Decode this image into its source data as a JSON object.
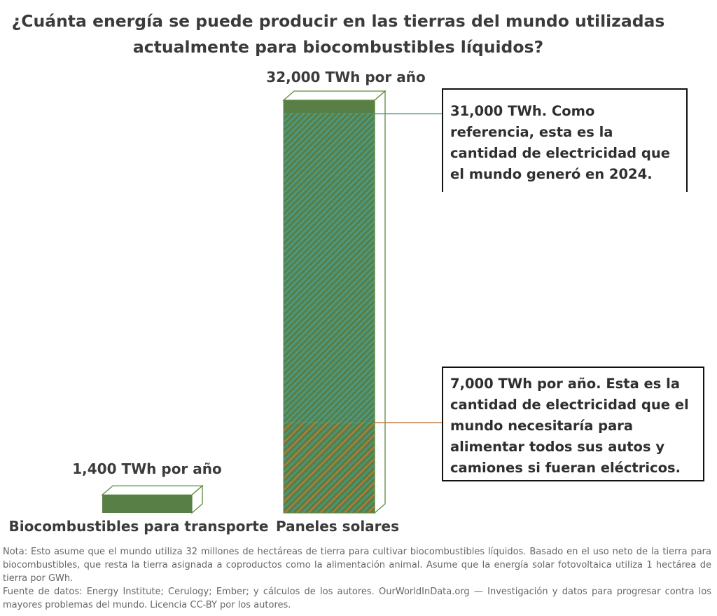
{
  "title": {
    "line1": "¿Cuánta energía se puede producir en las tierras del mundo utilizadas",
    "line2": "actualmente para biocombustibles líquidos?"
  },
  "colors": {
    "green": "#587f45",
    "green_light": "#6e9a58",
    "hatch": "#4a9a86",
    "orange": "#c17a3a",
    "outline": "#5b8a3c"
  },
  "chart_data": {
    "type": "bar",
    "unit": "TWh por año",
    "categories": [
      "Biocombustibles para transporte",
      "Paneles solares"
    ],
    "values": [
      1400,
      32000
    ],
    "value_labels": [
      "1,400 TWh por año",
      "32,000 TWh por año"
    ],
    "ylim": [
      0,
      32000
    ],
    "grid": false,
    "segments": {
      "global_electricity_2024": 31000,
      "ev_transport_electricity": 7000
    },
    "annotations": [
      {
        "value": 31000,
        "text": "31,000 TWh. Como referencia, esta es la cantidad de electricidad que el mundo generó en 2024."
      },
      {
        "value": 7000,
        "text": "7,000 TWh por año. Esta es la cantidad de electricidad que el mundo necesitaría para alimentar todos sus autos y camiones si fueran eléctricos."
      }
    ]
  },
  "footer": {
    "note": "Nota: Esto asume que el mundo utiliza 32 millones de hectáreas de tierra para cultivar biocombustibles líquidos. Basado en el uso neto de la tierra para biocombustibles, que resta la tierra asignada a coproductos como la alimentación animal. Asume que la energía solar fotovoltaica utiliza 1 hectárea de tierra por GWh.",
    "source": "Fuente de datos: Energy Institute; Cerulogy; Ember; y cálculos de los autores. OurWorldInData.org — Investigación y datos para progresar contra los mayores problemas del mundo. Licencia CC-BY por los autores."
  }
}
